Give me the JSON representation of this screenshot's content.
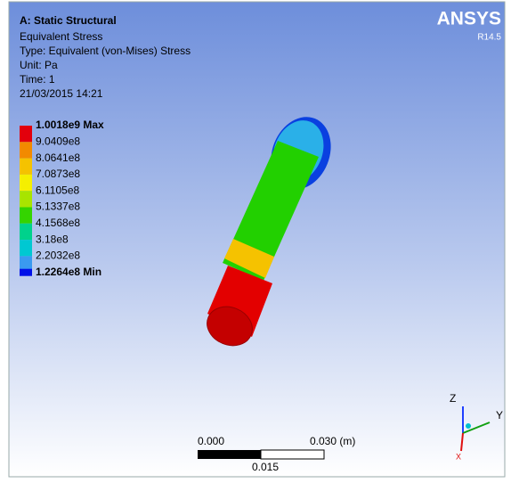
{
  "header": {
    "title": "A: Static Structural",
    "lines": [
      "Equivalent Stress",
      "Type: Equivalent (von-Mises) Stress",
      "Unit: Pa",
      "Time: 1",
      "21/03/2015 14:21"
    ]
  },
  "legend": {
    "labels": [
      "1.0018e9 Max",
      "9.0409e8",
      "8.0641e8",
      "7.0873e8",
      "6.1105e8",
      "5.1337e8",
      "4.1568e8",
      "3.18e8",
      "2.2032e8",
      "1.2264e8 Min"
    ],
    "colors": [
      "#e3000c",
      "#f28a00",
      "#f5c200",
      "#f5ef00",
      "#a8e400",
      "#34d400",
      "#00d28c",
      "#00c8d2",
      "#3a9af0",
      "#0010e8"
    ]
  },
  "logo": {
    "brand": "ANSYS",
    "version": "R14.5"
  },
  "scale_bar": {
    "left": "0.000",
    "right": "0.030 (m)",
    "middle": "0.015"
  },
  "triad": {
    "z": "Z",
    "y": "Y",
    "x": "X"
  }
}
